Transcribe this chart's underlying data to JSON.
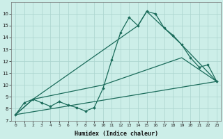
{
  "bg_color": "#cceee8",
  "grid_color": "#aad4ce",
  "line_color": "#1a6b5a",
  "xlabel": "Humidex (Indice chaleur)",
  "ylim": [
    7,
    17
  ],
  "xlim": [
    -0.5,
    23.5
  ],
  "yticks": [
    7,
    8,
    9,
    10,
    11,
    12,
    13,
    14,
    15,
    16
  ],
  "xticks": [
    0,
    1,
    2,
    3,
    4,
    5,
    6,
    7,
    8,
    9,
    10,
    11,
    12,
    13,
    14,
    15,
    16,
    17,
    18,
    19,
    20,
    21,
    22,
    23
  ],
  "lines": [
    {
      "x": [
        0,
        1,
        2,
        3,
        4,
        5,
        6,
        7,
        8,
        9,
        10,
        11,
        12,
        13,
        14,
        15,
        16,
        17,
        18,
        19,
        20,
        21,
        22,
        23
      ],
      "y": [
        7.5,
        8.5,
        8.8,
        8.5,
        8.2,
        8.6,
        8.3,
        8.1,
        7.8,
        8.1,
        9.7,
        12.1,
        14.4,
        15.7,
        15.0,
        16.2,
        16.0,
        14.8,
        14.2,
        13.4,
        12.3,
        11.5,
        11.7,
        10.3
      ],
      "marker": "D",
      "markersize": 1.8,
      "lw": 0.9
    },
    {
      "x": [
        0,
        2,
        14,
        15,
        19,
        23
      ],
      "y": [
        7.5,
        8.8,
        15.0,
        16.2,
        13.4,
        10.3
      ],
      "marker": null,
      "lw": 0.9
    },
    {
      "x": [
        0,
        2,
        10,
        19,
        23
      ],
      "y": [
        7.5,
        8.8,
        10.0,
        12.3,
        10.3
      ],
      "marker": null,
      "lw": 0.9
    },
    {
      "x": [
        0,
        23
      ],
      "y": [
        7.5,
        10.3
      ],
      "marker": null,
      "lw": 0.9
    }
  ]
}
